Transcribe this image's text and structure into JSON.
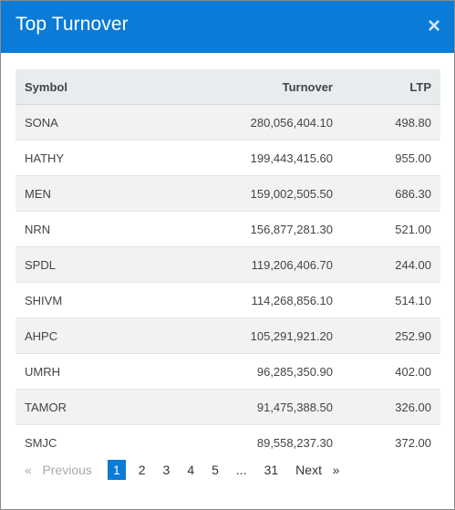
{
  "dialog": {
    "title": "Top Turnover",
    "close_label": "×"
  },
  "table": {
    "headers": {
      "symbol": "Symbol",
      "turnover": "Turnover",
      "ltp": "LTP"
    },
    "rows": [
      {
        "symbol": "SONA",
        "turnover": "280,056,404.10",
        "ltp": "498.80"
      },
      {
        "symbol": "HATHY",
        "turnover": "199,443,415.60",
        "ltp": "955.00"
      },
      {
        "symbol": "MEN",
        "turnover": "159,002,505.50",
        "ltp": "686.30"
      },
      {
        "symbol": "NRN",
        "turnover": "156,877,281.30",
        "ltp": "521.00"
      },
      {
        "symbol": "SPDL",
        "turnover": "119,206,406.70",
        "ltp": "244.00"
      },
      {
        "symbol": "SHIVM",
        "turnover": "114,268,856.10",
        "ltp": "514.10"
      },
      {
        "symbol": "AHPC",
        "turnover": "105,291,921.20",
        "ltp": "252.90"
      },
      {
        "symbol": "UMRH",
        "turnover": "96,285,350.90",
        "ltp": "402.00"
      },
      {
        "symbol": "TAMOR",
        "turnover": "91,475,388.50",
        "ltp": "326.00"
      },
      {
        "symbol": "SMJC",
        "turnover": "89,558,237.30",
        "ltp": "372.00"
      }
    ]
  },
  "pagination": {
    "previous_label": "«   Previous",
    "next_label": "Next   »",
    "ellipsis": "...",
    "pages": [
      "1",
      "2",
      "3",
      "4",
      "5",
      "31"
    ],
    "active_page": "1"
  }
}
